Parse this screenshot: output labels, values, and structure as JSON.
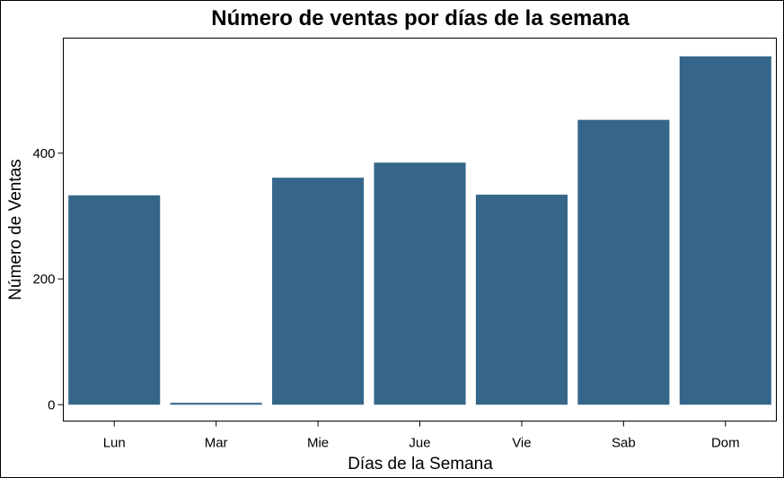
{
  "chart_data": {
    "type": "bar",
    "title": "Número de ventas por días de la semana",
    "xlabel": "Días de la Semana",
    "ylabel": "Número de Ventas",
    "categories": [
      "Lun",
      "Mar",
      "Mie",
      "Jue",
      "Vie",
      "Sab",
      "Dom"
    ],
    "values": [
      333,
      3,
      361,
      385,
      334,
      453,
      554
    ],
    "ylim": [
      -26,
      583
    ],
    "yticks": [
      "0",
      "200",
      "400"
    ],
    "grid": false,
    "legend": "none",
    "bar_color": "#35668a"
  }
}
